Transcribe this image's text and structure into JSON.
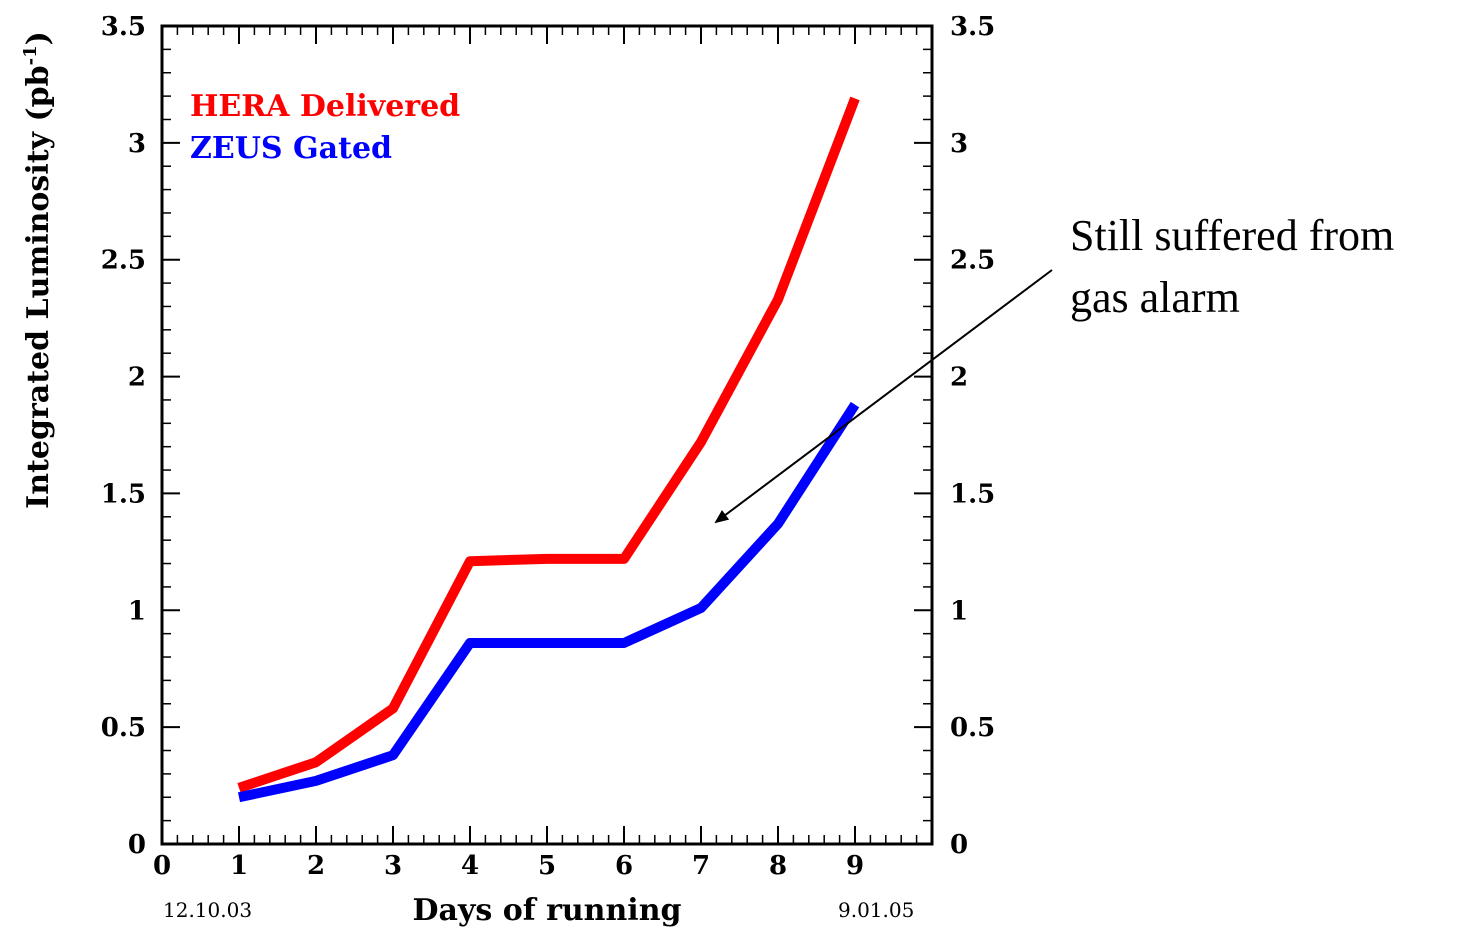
{
  "chart_data": {
    "type": "line",
    "x": [
      1,
      2,
      3,
      4,
      5,
      6,
      7,
      8,
      9
    ],
    "series": [
      {
        "name": "HERA Delivered",
        "color": "#ff0000",
        "values": [
          0.24,
          0.35,
          0.58,
          1.21,
          1.22,
          1.22,
          1.72,
          2.33,
          3.19
        ]
      },
      {
        "name": "ZEUS Gated",
        "color": "#0000ff",
        "values": [
          0.2,
          0.27,
          0.38,
          0.86,
          0.86,
          0.86,
          1.01,
          1.37,
          1.88
        ]
      }
    ],
    "xlim": [
      0,
      10
    ],
    "ylim": [
      0,
      3.5
    ],
    "xticks": [
      "0",
      "1",
      "2",
      "3",
      "4",
      "5",
      "6",
      "7",
      "8",
      "9"
    ],
    "yticks": [
      "0",
      "0.5",
      "1",
      "1.5",
      "2",
      "2.5",
      "3",
      "3.5"
    ],
    "xlabel": "Days of running",
    "ylabel": "Integrated Luminosity (pb",
    "ylabel_sup": "-1",
    "ylabel_end": ")",
    "date_start": "12.10.03",
    "date_end": "9.01.05",
    "legend_position": "top-left",
    "grid": false
  },
  "annotation": {
    "line1": "Still suffered from",
    "line2": "gas alarm"
  }
}
